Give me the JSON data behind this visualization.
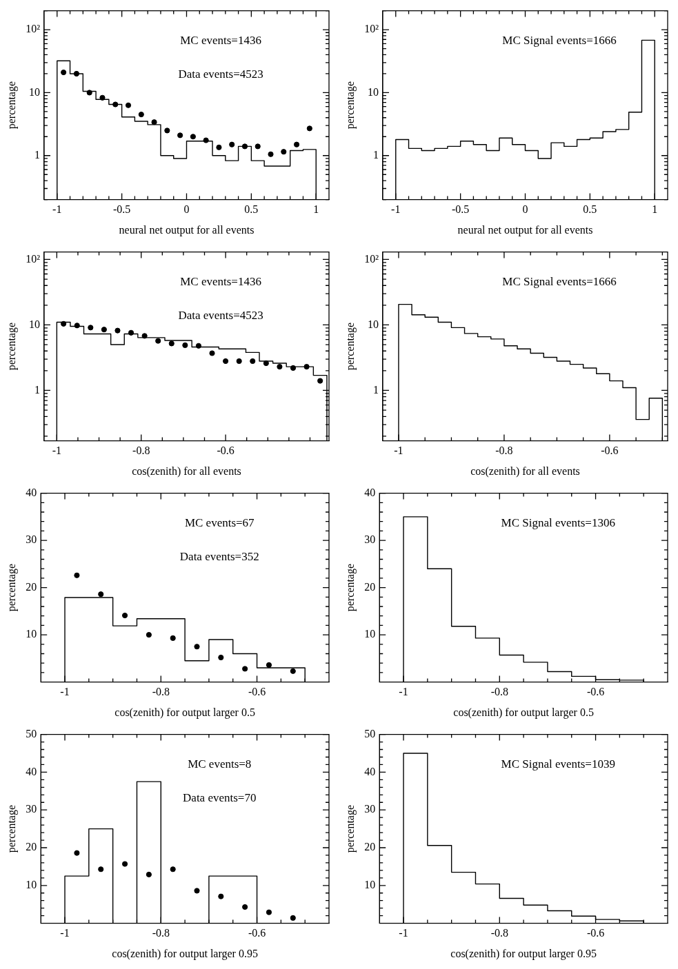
{
  "chart_data": [
    {
      "type": "histogram",
      "xlabel": "neural net output for all events",
      "ylabel": "percentage",
      "log": "y",
      "grid": false,
      "legend": false,
      "marker": "circle",
      "annotations": [
        "MC events=1436",
        "Data events=4523"
      ],
      "bins": [
        -1,
        -0.9,
        -0.8,
        -0.7,
        -0.6,
        -0.5,
        -0.4,
        -0.3,
        -0.2,
        -0.1,
        0,
        0.1,
        0.2,
        0.3,
        0.4,
        0.5,
        0.6,
        0.7,
        0.8,
        0.9,
        1
      ],
      "series": [
        {
          "type": "histogram",
          "color": "#000000",
          "values": [
            32,
            20,
            10.5,
            7.8,
            6.5,
            4.1,
            3.5,
            3.1,
            1.0,
            0.9,
            1.7,
            1.7,
            1.0,
            0.83,
            1.4,
            0.83,
            0.68,
            0.68,
            1.2,
            1.25
          ]
        },
        {
          "type": "scatter",
          "color": "#000000",
          "x": [
            -0.95,
            -0.85,
            -0.75,
            -0.65,
            -0.55,
            -0.45,
            -0.35,
            -0.25,
            -0.15,
            -0.05,
            0.05,
            0.15,
            0.25,
            0.35,
            0.45,
            0.55,
            0.65,
            0.75,
            0.85,
            0.95
          ],
          "values": [
            21,
            20,
            10,
            8.3,
            6.5,
            6.3,
            4.5,
            3.4,
            2.5,
            2.1,
            2.0,
            1.75,
            1.35,
            1.5,
            1.4,
            1.4,
            1.05,
            1.15,
            1.5,
            2.7
          ]
        }
      ],
      "xlim": [
        -1.1,
        1.1
      ],
      "xticks": [
        -1,
        {
          "value": -0.9,
          "label": null
        },
        {
          "value": -0.8,
          "label": null
        },
        {
          "value": -0.7,
          "label": null
        },
        {
          "value": -0.6,
          "label": null
        },
        -0.5,
        {
          "value": -0.4,
          "label": null
        },
        {
          "value": -0.3,
          "label": null
        },
        {
          "value": -0.2,
          "label": null
        },
        {
          "value": -0.1,
          "label": null
        },
        0,
        {
          "value": 0.1,
          "label": null
        },
        {
          "value": 0.2,
          "label": null
        },
        {
          "value": 0.3,
          "label": null
        },
        {
          "value": 0.4,
          "label": null
        },
        0.5,
        {
          "value": 0.6,
          "label": null
        },
        {
          "value": 0.7,
          "label": null
        },
        {
          "value": 0.8,
          "label": null
        },
        {
          "value": 0.9,
          "label": null
        },
        1
      ],
      "ylim": [
        0.2,
        200
      ],
      "yticks": [
        {
          "value": 0.2,
          "label": null
        },
        {
          "value": 0.3,
          "label": null
        },
        {
          "value": 0.4,
          "label": null
        },
        {
          "value": 0.5,
          "label": null
        },
        {
          "value": 0.6,
          "label": null
        },
        {
          "value": 0.7,
          "label": null
        },
        {
          "value": 0.8,
          "label": null
        },
        {
          "value": 0.9,
          "label": null
        },
        1,
        {
          "value": 2,
          "label": null
        },
        {
          "value": 3,
          "label": null
        },
        {
          "value": 4,
          "label": null
        },
        {
          "value": 5,
          "label": null
        },
        {
          "value": 6,
          "label": null
        },
        {
          "value": 7,
          "label": null
        },
        {
          "value": 8,
          "label": null
        },
        {
          "value": 9,
          "label": null
        },
        10,
        {
          "value": 20,
          "label": null
        },
        {
          "value": 30,
          "label": null
        },
        {
          "value": 40,
          "label": null
        },
        {
          "value": 50,
          "label": null
        },
        {
          "value": 60,
          "label": null
        },
        {
          "value": 70,
          "label": null
        },
        {
          "value": 80,
          "label": null
        },
        {
          "value": 90,
          "label": null
        },
        {
          "value": 100,
          "label": "10²"
        },
        {
          "value": 200,
          "label": null
        }
      ]
    },
    {
      "type": "histogram",
      "xlabel": "neural net output for all events",
      "ylabel": "percentage",
      "log": "y",
      "grid": false,
      "legend": false,
      "annotations": [
        "MC Signal events=1666"
      ],
      "bins": [
        -1,
        -0.9,
        -0.8,
        -0.7,
        -0.6,
        -0.5,
        -0.4,
        -0.3,
        -0.2,
        -0.1,
        0,
        0.1,
        0.2,
        0.3,
        0.4,
        0.5,
        0.6,
        0.7,
        0.8,
        0.9,
        1
      ],
      "color": "#000000",
      "values": [
        1.8,
        1.3,
        1.2,
        1.3,
        1.4,
        1.7,
        1.5,
        1.2,
        1.9,
        1.5,
        1.2,
        0.9,
        1.6,
        1.4,
        1.8,
        1.9,
        2.4,
        2.6,
        4.9,
        68
      ],
      "xlim": [
        -1.1,
        1.1
      ],
      "xticks": [
        -1,
        {
          "value": -0.9,
          "label": null
        },
        {
          "value": -0.8,
          "label": null
        },
        {
          "value": -0.7,
          "label": null
        },
        {
          "value": -0.6,
          "label": null
        },
        -0.5,
        {
          "value": -0.4,
          "label": null
        },
        {
          "value": -0.3,
          "label": null
        },
        {
          "value": -0.2,
          "label": null
        },
        {
          "value": -0.1,
          "label": null
        },
        0,
        {
          "value": 0.1,
          "label": null
        },
        {
          "value": 0.2,
          "label": null
        },
        {
          "value": 0.3,
          "label": null
        },
        {
          "value": 0.4,
          "label": null
        },
        0.5,
        {
          "value": 0.6,
          "label": null
        },
        {
          "value": 0.7,
          "label": null
        },
        {
          "value": 0.8,
          "label": null
        },
        {
          "value": 0.9,
          "label": null
        },
        1
      ],
      "ylim": [
        0.2,
        200
      ],
      "yticks": [
        {
          "value": 0.2,
          "label": null
        },
        {
          "value": 0.3,
          "label": null
        },
        {
          "value": 0.4,
          "label": null
        },
        {
          "value": 0.5,
          "label": null
        },
        {
          "value": 0.6,
          "label": null
        },
        {
          "value": 0.7,
          "label": null
        },
        {
          "value": 0.8,
          "label": null
        },
        {
          "value": 0.9,
          "label": null
        },
        1,
        {
          "value": 2,
          "label": null
        },
        {
          "value": 3,
          "label": null
        },
        {
          "value": 4,
          "label": null
        },
        {
          "value": 5,
          "label": null
        },
        {
          "value": 6,
          "label": null
        },
        {
          "value": 7,
          "label": null
        },
        {
          "value": 8,
          "label": null
        },
        {
          "value": 9,
          "label": null
        },
        10,
        {
          "value": 20,
          "label": null
        },
        {
          "value": 30,
          "label": null
        },
        {
          "value": 40,
          "label": null
        },
        {
          "value": 50,
          "label": null
        },
        {
          "value": 60,
          "label": null
        },
        {
          "value": 70,
          "label": null
        },
        {
          "value": 80,
          "label": null
        },
        {
          "value": 90,
          "label": null
        },
        {
          "value": 100,
          "label": "10²"
        },
        {
          "value": 200,
          "label": null
        }
      ]
    },
    {
      "type": "histogram",
      "xlabel": "cos(zenith) for all events",
      "ylabel": "percentage",
      "log": "y",
      "grid": false,
      "legend": false,
      "marker": "circle",
      "annotations": [
        "MC events=1436",
        "Data events=4523"
      ],
      "bins": [
        -1,
        -0.968,
        -0.936,
        -0.904,
        -0.872,
        -0.84,
        -0.808,
        -0.776,
        -0.744,
        -0.712,
        -0.68,
        -0.648,
        -0.616,
        -0.584,
        -0.552,
        -0.52,
        -0.488,
        -0.456,
        -0.424,
        -0.392,
        -0.36
      ],
      "series": [
        {
          "type": "histogram",
          "color": "#000000",
          "values": [
            11,
            9.5,
            7.3,
            7.3,
            5.0,
            7.3,
            6.4,
            6.4,
            5.8,
            5.8,
            4.6,
            4.6,
            4.3,
            4.3,
            3.8,
            2.8,
            2.6,
            2.3,
            2.3,
            1.7
          ]
        },
        {
          "type": "scatter",
          "color": "#000000",
          "x": [
            -0.984,
            -0.952,
            -0.92,
            -0.888,
            -0.856,
            -0.824,
            -0.792,
            -0.76,
            -0.728,
            -0.696,
            -0.664,
            -0.632,
            -0.6,
            -0.568,
            -0.536,
            -0.504,
            -0.472,
            -0.44,
            -0.408,
            -0.376
          ],
          "values": [
            10.4,
            9.8,
            9.1,
            8.5,
            8.2,
            7.6,
            6.8,
            5.7,
            5.2,
            4.9,
            4.8,
            3.7,
            2.8,
            2.8,
            2.8,
            2.6,
            2.3,
            2.2,
            2.3,
            1.4
          ]
        }
      ],
      "xlim": [
        -1.03,
        -0.355
      ],
      "xticks": [
        -1,
        {
          "value": -0.95,
          "label": null
        },
        {
          "value": -0.9,
          "label": null
        },
        {
          "value": -0.85,
          "label": null
        },
        -0.8,
        {
          "value": -0.75,
          "label": null
        },
        {
          "value": -0.7,
          "label": null
        },
        {
          "value": -0.65,
          "label": null
        },
        -0.6,
        {
          "value": -0.55,
          "label": null
        },
        {
          "value": -0.5,
          "label": null
        },
        {
          "value": -0.45,
          "label": null
        },
        {
          "value": -0.4,
          "label": null
        }
      ],
      "ylim": [
        0.17,
        130
      ],
      "yticks": [
        {
          "value": 0.2,
          "label": null
        },
        {
          "value": 0.3,
          "label": null
        },
        {
          "value": 0.4,
          "label": null
        },
        {
          "value": 0.5,
          "label": null
        },
        {
          "value": 0.6,
          "label": null
        },
        {
          "value": 0.7,
          "label": null
        },
        {
          "value": 0.8,
          "label": null
        },
        {
          "value": 0.9,
          "label": null
        },
        1,
        {
          "value": 2,
          "label": null
        },
        {
          "value": 3,
          "label": null
        },
        {
          "value": 4,
          "label": null
        },
        {
          "value": 5,
          "label": null
        },
        {
          "value": 6,
          "label": null
        },
        {
          "value": 7,
          "label": null
        },
        {
          "value": 8,
          "label": null
        },
        {
          "value": 9,
          "label": null
        },
        10,
        {
          "value": 20,
          "label": null
        },
        {
          "value": 30,
          "label": null
        },
        {
          "value": 40,
          "label": null
        },
        {
          "value": 50,
          "label": null
        },
        {
          "value": 60,
          "label": null
        },
        {
          "value": 70,
          "label": null
        },
        {
          "value": 80,
          "label": null
        },
        {
          "value": 90,
          "label": null
        },
        {
          "value": 100,
          "label": "10²"
        }
      ]
    },
    {
      "type": "histogram",
      "xlabel": "cos(zenith) for all events",
      "ylabel": "percentage",
      "log": "y",
      "grid": false,
      "legend": false,
      "annotations": [
        "MC Signal events=1666"
      ],
      "bins": [
        -1,
        -0.975,
        -0.95,
        -0.925,
        -0.9,
        -0.875,
        -0.85,
        -0.825,
        -0.8,
        -0.775,
        -0.75,
        -0.725,
        -0.7,
        -0.675,
        -0.65,
        -0.625,
        -0.6,
        -0.575,
        -0.55,
        -0.525,
        -0.5
      ],
      "color": "#000000",
      "values": [
        20.6,
        14.3,
        13.1,
        11,
        9.1,
        7.4,
        6.6,
        6.1,
        4.8,
        4.3,
        3.7,
        3.2,
        2.8,
        2.5,
        2.2,
        1.8,
        1.4,
        1.1,
        0.36,
        0.76
      ],
      "xlim": [
        -1.03,
        -0.49
      ],
      "xticks": [
        -1,
        {
          "value": -0.95,
          "label": null
        },
        {
          "value": -0.9,
          "label": null
        },
        {
          "value": -0.85,
          "label": null
        },
        -0.8,
        {
          "value": -0.75,
          "label": null
        },
        {
          "value": -0.7,
          "label": null
        },
        {
          "value": -0.65,
          "label": null
        },
        -0.6,
        {
          "value": -0.55,
          "label": null
        },
        {
          "value": -0.5,
          "label": null
        }
      ],
      "ylim": [
        0.17,
        130
      ],
      "yticks": [
        {
          "value": 0.2,
          "label": null
        },
        {
          "value": 0.3,
          "label": null
        },
        {
          "value": 0.4,
          "label": null
        },
        {
          "value": 0.5,
          "label": null
        },
        {
          "value": 0.6,
          "label": null
        },
        {
          "value": 0.7,
          "label": null
        },
        {
          "value": 0.8,
          "label": null
        },
        {
          "value": 0.9,
          "label": null
        },
        1,
        {
          "value": 2,
          "label": null
        },
        {
          "value": 3,
          "label": null
        },
        {
          "value": 4,
          "label": null
        },
        {
          "value": 5,
          "label": null
        },
        {
          "value": 6,
          "label": null
        },
        {
          "value": 7,
          "label": null
        },
        {
          "value": 8,
          "label": null
        },
        {
          "value": 9,
          "label": null
        },
        10,
        {
          "value": 20,
          "label": null
        },
        {
          "value": 30,
          "label": null
        },
        {
          "value": 40,
          "label": null
        },
        {
          "value": 50,
          "label": null
        },
        {
          "value": 60,
          "label": null
        },
        {
          "value": 70,
          "label": null
        },
        {
          "value": 80,
          "label": null
        },
        {
          "value": 90,
          "label": null
        },
        {
          "value": 100,
          "label": "10²"
        }
      ]
    },
    {
      "type": "histogram",
      "xlabel": "cos(zenith) for output larger 0.5",
      "ylabel": "percentage",
      "grid": false,
      "legend": false,
      "marker": "circle",
      "annotations": [
        "MC events=67",
        "Data events=352"
      ],
      "bins": [
        -1,
        -0.95,
        -0.9,
        -0.85,
        -0.8,
        -0.75,
        -0.7,
        -0.65,
        -0.6,
        -0.55,
        -0.5
      ],
      "series": [
        {
          "type": "histogram",
          "color": "#000000",
          "values": [
            17.9,
            17.9,
            11.9,
            13.4,
            13.4,
            4.5,
            9.0,
            6.0,
            3.0,
            3.0
          ]
        },
        {
          "type": "scatter",
          "color": "#000000",
          "x": [
            -0.975,
            -0.925,
            -0.875,
            -0.825,
            -0.775,
            -0.725,
            -0.675,
            -0.625,
            -0.575,
            -0.525
          ],
          "values": [
            22.6,
            18.6,
            14.1,
            10,
            9.3,
            7.5,
            5.2,
            2.8,
            3.6,
            2.3
          ]
        }
      ],
      "xlim": [
        -1.05,
        -0.45
      ],
      "xticks": [
        -1,
        {
          "value": -0.95,
          "label": null
        },
        {
          "value": -0.9,
          "label": null
        },
        {
          "value": -0.85,
          "label": null
        },
        -0.8,
        {
          "value": -0.75,
          "label": null
        },
        {
          "value": -0.7,
          "label": null
        },
        {
          "value": -0.65,
          "label": null
        },
        -0.6,
        {
          "value": -0.55,
          "label": null
        },
        {
          "value": -0.5,
          "label": null
        }
      ],
      "ylim": [
        0,
        40
      ],
      "yticks": [
        {
          "value": 2,
          "label": null
        },
        {
          "value": 4,
          "label": null
        },
        {
          "value": 6,
          "label": null
        },
        {
          "value": 8,
          "label": null
        },
        10,
        {
          "value": 12,
          "label": null
        },
        {
          "value": 14,
          "label": null
        },
        {
          "value": 16,
          "label": null
        },
        {
          "value": 18,
          "label": null
        },
        20,
        {
          "value": 22,
          "label": null
        },
        {
          "value": 24,
          "label": null
        },
        {
          "value": 26,
          "label": null
        },
        {
          "value": 28,
          "label": null
        },
        30,
        {
          "value": 32,
          "label": null
        },
        {
          "value": 34,
          "label": null
        },
        {
          "value": 36,
          "label": null
        },
        {
          "value": 38,
          "label": null
        },
        40
      ]
    },
    {
      "type": "histogram",
      "xlabel": "cos(zenith) for output larger 0.5",
      "ylabel": "percentage",
      "grid": false,
      "legend": false,
      "annotations": [
        "MC Signal events=1306"
      ],
      "bins": [
        -1,
        -0.95,
        -0.9,
        -0.85,
        -0.8,
        -0.75,
        -0.7,
        -0.65,
        -0.6,
        -0.55,
        -0.5
      ],
      "color": "#000000",
      "values": [
        35,
        24,
        11.8,
        9.3,
        5.7,
        4.2,
        2.2,
        1.2,
        0.5,
        0.4
      ],
      "xlim": [
        -1.05,
        -0.45
      ],
      "xticks": [
        -1,
        {
          "value": -0.95,
          "label": null
        },
        {
          "value": -0.9,
          "label": null
        },
        {
          "value": -0.85,
          "label": null
        },
        -0.8,
        {
          "value": -0.75,
          "label": null
        },
        {
          "value": -0.7,
          "label": null
        },
        {
          "value": -0.65,
          "label": null
        },
        -0.6,
        {
          "value": -0.55,
          "label": null
        },
        {
          "value": -0.5,
          "label": null
        }
      ],
      "ylim": [
        0,
        40
      ],
      "yticks": [
        {
          "value": 2,
          "label": null
        },
        {
          "value": 4,
          "label": null
        },
        {
          "value": 6,
          "label": null
        },
        {
          "value": 8,
          "label": null
        },
        10,
        {
          "value": 12,
          "label": null
        },
        {
          "value": 14,
          "label": null
        },
        {
          "value": 16,
          "label": null
        },
        {
          "value": 18,
          "label": null
        },
        20,
        {
          "value": 22,
          "label": null
        },
        {
          "value": 24,
          "label": null
        },
        {
          "value": 26,
          "label": null
        },
        {
          "value": 28,
          "label": null
        },
        30,
        {
          "value": 32,
          "label": null
        },
        {
          "value": 34,
          "label": null
        },
        {
          "value": 36,
          "label": null
        },
        {
          "value": 38,
          "label": null
        },
        40
      ]
    },
    {
      "type": "histogram",
      "xlabel": "cos(zenith) for output larger 0.95",
      "ylabel": "percentage",
      "grid": false,
      "legend": false,
      "marker": "circle",
      "annotations": [
        "MC events=8",
        "Data events=70"
      ],
      "bins": [
        -1,
        -0.95,
        -0.9,
        -0.85,
        -0.8,
        -0.75,
        -0.7,
        -0.65,
        -0.6,
        -0.55,
        -0.5
      ],
      "series": [
        {
          "type": "histogram",
          "color": "#000000",
          "values": [
            12.5,
            25,
            0,
            37.5,
            0,
            0,
            12.5,
            12.5,
            0,
            0
          ]
        },
        {
          "type": "scatter",
          "color": "#000000",
          "x": [
            -0.975,
            -0.925,
            -0.875,
            -0.825,
            -0.775,
            -0.725,
            -0.675,
            -0.625,
            -0.575,
            -0.525
          ],
          "values": [
            18.6,
            14.3,
            15.7,
            12.9,
            14.3,
            8.6,
            7.1,
            4.3,
            2.9,
            1.4
          ]
        }
      ],
      "xlim": [
        -1.05,
        -0.45
      ],
      "xticks": [
        -1,
        {
          "value": -0.95,
          "label": null
        },
        {
          "value": -0.9,
          "label": null
        },
        {
          "value": -0.85,
          "label": null
        },
        -0.8,
        {
          "value": -0.75,
          "label": null
        },
        {
          "value": -0.7,
          "label": null
        },
        {
          "value": -0.65,
          "label": null
        },
        -0.6,
        {
          "value": -0.55,
          "label": null
        },
        {
          "value": -0.5,
          "label": null
        }
      ],
      "ylim": [
        0,
        50
      ],
      "yticks": [
        {
          "value": 2,
          "label": null
        },
        {
          "value": 4,
          "label": null
        },
        {
          "value": 6,
          "label": null
        },
        {
          "value": 8,
          "label": null
        },
        10,
        {
          "value": 12,
          "label": null
        },
        {
          "value": 14,
          "label": null
        },
        {
          "value": 16,
          "label": null
        },
        {
          "value": 18,
          "label": null
        },
        20,
        {
          "value": 22,
          "label": null
        },
        {
          "value": 24,
          "label": null
        },
        {
          "value": 26,
          "label": null
        },
        {
          "value": 28,
          "label": null
        },
        30,
        {
          "value": 32,
          "label": null
        },
        {
          "value": 34,
          "label": null
        },
        {
          "value": 36,
          "label": null
        },
        {
          "value": 38,
          "label": null
        },
        40,
        {
          "value": 42,
          "label": null
        },
        {
          "value": 44,
          "label": null
        },
        {
          "value": 46,
          "label": null
        },
        {
          "value": 48,
          "label": null
        },
        50
      ]
    },
    {
      "type": "histogram",
      "xlabel": "cos(zenith) for output larger 0.95",
      "ylabel": "percentage",
      "grid": false,
      "legend": false,
      "annotations": [
        "MC Signal events=1039"
      ],
      "bins": [
        -1,
        -0.95,
        -0.9,
        -0.85,
        -0.8,
        -0.75,
        -0.7,
        -0.65,
        -0.6,
        -0.55,
        -0.5
      ],
      "color": "#000000",
      "values": [
        45,
        20.6,
        13.5,
        10.4,
        6.6,
        4.8,
        3.3,
        1.9,
        1.0,
        0.6
      ],
      "xlim": [
        -1.05,
        -0.45
      ],
      "xticks": [
        -1,
        {
          "value": -0.95,
          "label": null
        },
        {
          "value": -0.9,
          "label": null
        },
        {
          "value": -0.85,
          "label": null
        },
        -0.8,
        {
          "value": -0.75,
          "label": null
        },
        {
          "value": -0.7,
          "label": null
        },
        {
          "value": -0.65,
          "label": null
        },
        -0.6,
        {
          "value": -0.55,
          "label": null
        },
        {
          "value": -0.5,
          "label": null
        }
      ],
      "ylim": [
        0,
        50
      ],
      "yticks": [
        {
          "value": 2,
          "label": null
        },
        {
          "value": 4,
          "label": null
        },
        {
          "value": 6,
          "label": null
        },
        {
          "value": 8,
          "label": null
        },
        10,
        {
          "value": 12,
          "label": null
        },
        {
          "value": 14,
          "label": null
        },
        {
          "value": 16,
          "label": null
        },
        {
          "value": 18,
          "label": null
        },
        20,
        {
          "value": 22,
          "label": null
        },
        {
          "value": 24,
          "label": null
        },
        {
          "value": 26,
          "label": null
        },
        {
          "value": 28,
          "label": null
        },
        30,
        {
          "value": 32,
          "label": null
        },
        {
          "value": 34,
          "label": null
        },
        {
          "value": 36,
          "label": null
        },
        {
          "value": 38,
          "label": null
        },
        40,
        {
          "value": 42,
          "label": null
        },
        {
          "value": 44,
          "label": null
        },
        {
          "value": 46,
          "label": null
        },
        {
          "value": 48,
          "label": null
        },
        50
      ]
    }
  ]
}
